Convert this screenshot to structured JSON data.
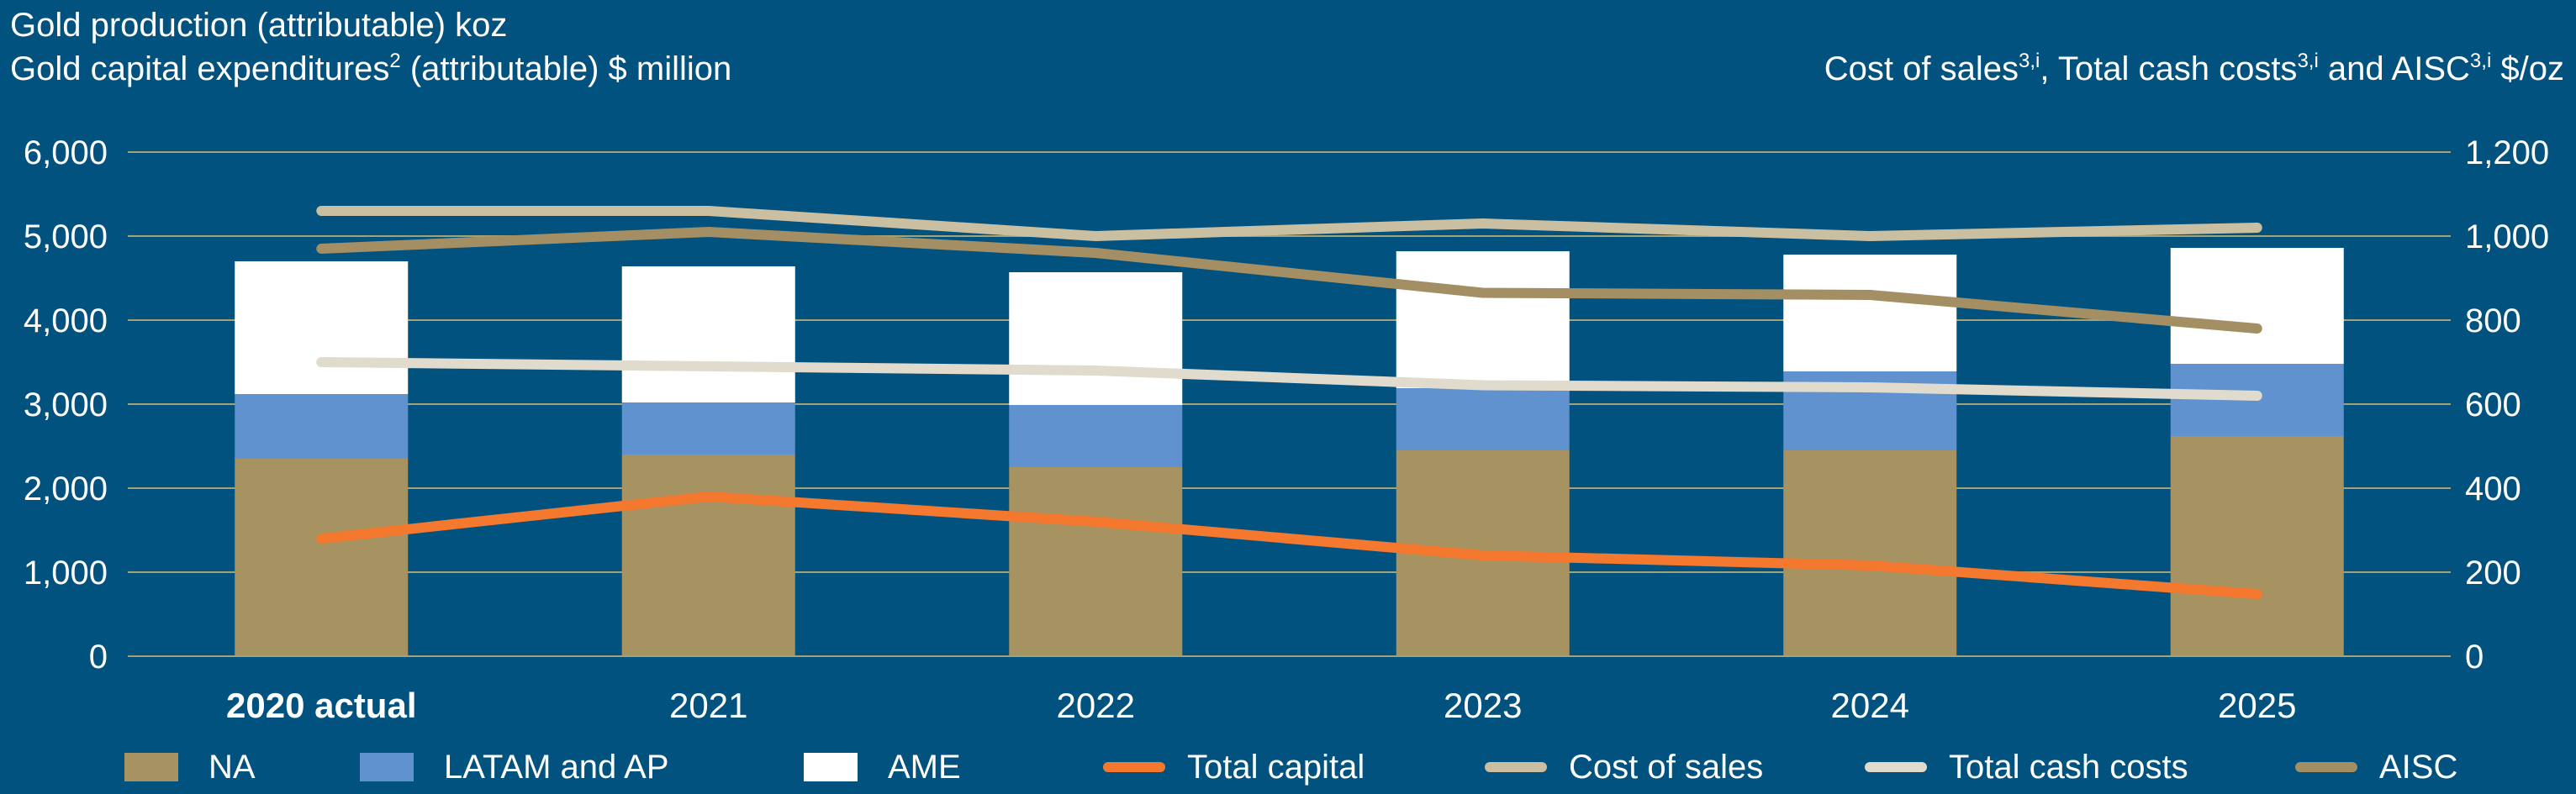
{
  "titles": {
    "left_line1": "Gold production (attributable) koz",
    "left_line2_main": "Gold capital expenditures",
    "left_line2_sup": "2",
    "left_line2_rest": " (attributable) $ million",
    "right_part1": "Cost of sales",
    "right_sup1": "3,i",
    "right_part2": ", Total cash costs",
    "right_sup2": "3,i",
    "right_part3": " and AISC",
    "right_sup3": "3,i",
    "right_part4": " $/oz"
  },
  "colors": {
    "background": "#02527f",
    "NA": "#a79262",
    "LATAM and AP": "#6092cf",
    "AME": "#ffffff",
    "Total capital": "#f4782e",
    "Cost of sales": "#cbbfa1",
    "Total cash costs": "#e0dbcc",
    "AISC": "#a38f63",
    "gridline": "#a3a376"
  },
  "chart_data": {
    "type": "bar",
    "categories": [
      "2020 actual",
      "2021",
      "2022",
      "2023",
      "2024",
      "2025"
    ],
    "bold_categories": [
      "2020 actual"
    ],
    "left_axis": {
      "ylim": [
        0,
        6000
      ],
      "ticks": [
        "0",
        "1,000",
        "2,000",
        "3,000",
        "4,000",
        "5,000",
        "6,000"
      ]
    },
    "right_axis": {
      "ylim": [
        0,
        1200
      ],
      "ticks": [
        "0",
        "200",
        "400",
        "600",
        "800",
        "1,000",
        "1,200"
      ]
    },
    "grid": true,
    "stacked_bars": [
      {
        "name": "NA",
        "values": [
          2350,
          2400,
          2250,
          2450,
          2450,
          2620
        ]
      },
      {
        "name": "LATAM and AP",
        "values": [
          770,
          620,
          740,
          740,
          940,
          860
        ]
      },
      {
        "name": "AME",
        "values": [
          1580,
          1620,
          1580,
          1630,
          1390,
          1380
        ]
      }
    ],
    "lines": [
      {
        "name": "Total capital",
        "axis": "left",
        "values": [
          1400,
          1900,
          1600,
          1200,
          1080,
          740
        ]
      },
      {
        "name": "Cost of sales",
        "axis": "right",
        "values": [
          1060,
          1060,
          1000,
          1030,
          1000,
          1020
        ]
      },
      {
        "name": "Total cash costs",
        "axis": "right",
        "values": [
          700,
          690,
          680,
          645,
          640,
          620
        ]
      },
      {
        "name": "AISC",
        "axis": "right",
        "values": [
          970,
          1010,
          960,
          865,
          860,
          780
        ]
      }
    ],
    "legend_order": [
      "NA",
      "LATAM and AP",
      "AME",
      "Total capital",
      "Cost of sales",
      "Total cash costs",
      "AISC"
    ],
    "legend_placement": "bottom"
  }
}
